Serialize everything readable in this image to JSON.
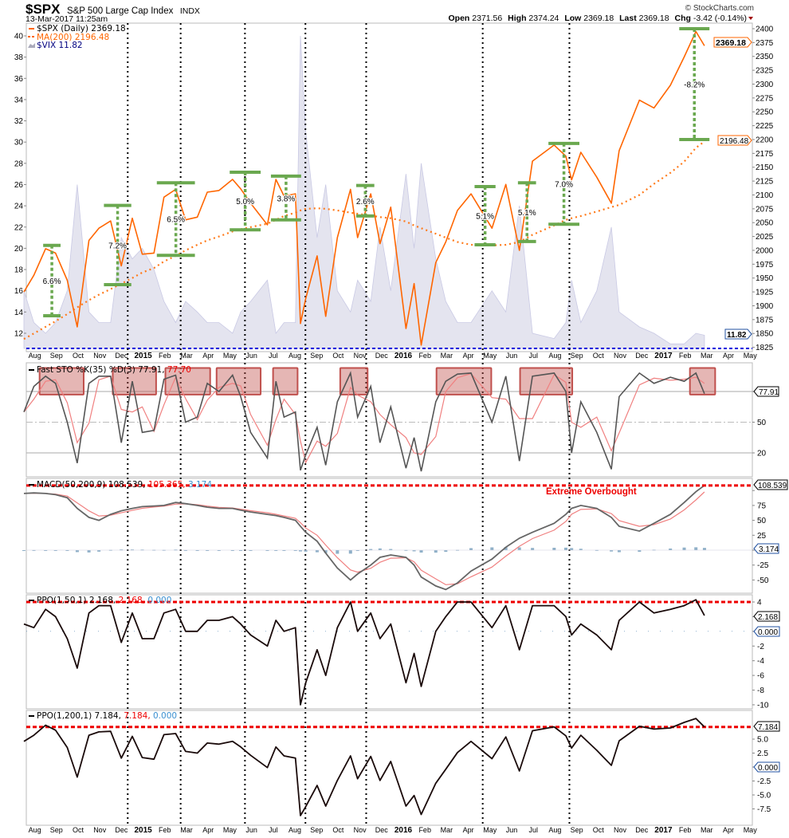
{
  "header": {
    "symbol": "$SPX",
    "name": "S&P 500 Large Cap Index",
    "exchange": "INDX",
    "datetime": "13-Mar-2017 11:25am",
    "watermark": "© StockCharts.com",
    "open_label": "Open",
    "open": "2371.56",
    "high_label": "High",
    "high": "2374.24",
    "low_label": "Low",
    "low": "2369.18",
    "last_label": "Last",
    "last": "2369.18",
    "chg_label": "Chg",
    "chg": "-3.42 (-0.14%)"
  },
  "legends": {
    "spx": "$SPX (Daily) 2369.18",
    "ma": "MA(200) 2196.48",
    "vix": "$VIX 11.82",
    "sto": "Fast STO %K(35) %D(3) 77.91,",
    "sto_d": " 77.70",
    "macd": "MACD(50,200,9) 108.539,",
    "macd_sig": " 105.365,",
    "macd_hist": " 3.174",
    "ppo50": "PPO(1,50,1) 2.168,",
    "ppo50_sig": " 2.168,",
    "ppo50_hist": " 0.000",
    "ppo200": "PPO(1,200,1) 7.184,",
    "ppo200_sig": " 7.184,",
    "ppo200_hist": " 0.000",
    "extreme": "Extreme Overbought"
  },
  "tags": {
    "spx": "2369.18",
    "ma": "2196.48",
    "vix": "11.82",
    "sto": "77.91",
    "macd": "108.539",
    "macd_hist": "3.174",
    "ppo50": "2.168",
    "ppo50_zero": "0.000",
    "ppo200": "7.184",
    "ppo200_zero": "0.000"
  },
  "colors": {
    "spx": "#ff6600",
    "ma": "#ff7a1a",
    "vix_fill": "#e4e4ef",
    "vix_line": "#c9c9e4",
    "bracket": "#6aa84f",
    "overbought": "#ee0000",
    "sto_box": "#c0504d",
    "osc": "#222222",
    "signal": "#f08080",
    "hist": "#8fb0c8",
    "vline": "#000000"
  },
  "chart_data": {
    "type": "line",
    "months": [
      "Aug",
      "Sep",
      "Oct",
      "Nov",
      "Dec",
      "2015",
      "Feb",
      "Mar",
      "Apr",
      "May",
      "Jun",
      "Jul",
      "Aug",
      "Sep",
      "Oct",
      "Nov",
      "Dec",
      "2016",
      "Feb",
      "Mar",
      "Apr",
      "May",
      "Jun",
      "Jul",
      "Aug",
      "Sep",
      "Oct",
      "Nov",
      "Dec",
      "2017",
      "Feb",
      "Mar",
      "Apr",
      "May"
    ],
    "dates": [
      "2014-08-01",
      "2014-08-15",
      "2014-09-01",
      "2014-09-15",
      "2014-10-01",
      "2014-10-15",
      "2014-11-01",
      "2014-11-15",
      "2014-12-01",
      "2014-12-16",
      "2015-01-01",
      "2015-01-15",
      "2015-02-01",
      "2015-02-15",
      "2015-03-01",
      "2015-03-15",
      "2015-04-01",
      "2015-04-15",
      "2015-05-01",
      "2015-05-20",
      "2015-06-01",
      "2015-06-15",
      "2015-07-08",
      "2015-07-20",
      "2015-08-01",
      "2015-08-17",
      "2015-08-24",
      "2015-09-01",
      "2015-09-17",
      "2015-09-29",
      "2015-10-15",
      "2015-11-03",
      "2015-11-13",
      "2015-12-01",
      "2015-12-14",
      "2015-12-29",
      "2016-01-20",
      "2016-02-01",
      "2016-02-11",
      "2016-03-01",
      "2016-03-15",
      "2016-04-01",
      "2016-04-20",
      "2016-05-19",
      "2016-06-08",
      "2016-06-27",
      "2016-07-15",
      "2016-08-15",
      "2016-09-01",
      "2016-09-09",
      "2016-09-22",
      "2016-10-14",
      "2016-11-04",
      "2016-11-15",
      "2016-12-13",
      "2017-01-03",
      "2017-01-26",
      "2017-02-15",
      "2017-03-01",
      "2017-03-13"
    ],
    "spx": [
      1925,
      1955,
      2003,
      1995,
      1946,
      1862,
      2018,
      2040,
      2053,
      1972,
      2058,
      1993,
      1995,
      2096,
      2110,
      2055,
      2060,
      2105,
      2108,
      2128,
      2111,
      2085,
      2046,
      2128,
      2098,
      2102,
      1868,
      1913,
      1990,
      1881,
      2023,
      2110,
      2023,
      2102,
      2012,
      2078,
      1859,
      1940,
      1829,
      1978,
      2015,
      2072,
      2102,
      2040,
      2119,
      2000,
      2161,
      2190,
      2170,
      2127,
      2177,
      2132,
      2085,
      2180,
      2271,
      2257,
      2298,
      2349,
      2395,
      2369.18
    ],
    "ma200": [
      1840,
      1850,
      1862,
      1872,
      1885,
      1897,
      1910,
      1920,
      1930,
      1940,
      1950,
      1960,
      1968,
      1980,
      1990,
      2000,
      2010,
      2018,
      2025,
      2034,
      2038,
      2042,
      2048,
      2055,
      2062,
      2068,
      2072,
      2075,
      2076,
      2075,
      2072,
      2068,
      2066,
      2063,
      2060,
      2058,
      2052,
      2045,
      2040,
      2030,
      2023,
      2015,
      2010,
      2009,
      2010,
      2015,
      2028,
      2045,
      2055,
      2058,
      2062,
      2070,
      2078,
      2082,
      2100,
      2120,
      2140,
      2160,
      2185,
      2196.48
    ],
    "vix": [
      16,
      13,
      12,
      13,
      16,
      26,
      14,
      13,
      13,
      21,
      19,
      20,
      18,
      15,
      13,
      15,
      14,
      13,
      13,
      12,
      14,
      15,
      17,
      12,
      13,
      13,
      40,
      31,
      21,
      26,
      16,
      14,
      17,
      15,
      22,
      16,
      27,
      20,
      28,
      19,
      15,
      13,
      13,
      16,
      14,
      24,
      12,
      11.5,
      13,
      17,
      13,
      16,
      22,
      14,
      12.6,
      12,
      11,
      11,
      12,
      11.82
    ],
    "sto_k": [
      60,
      85,
      95,
      88,
      50,
      10,
      88,
      95,
      95,
      30,
      90,
      40,
      42,
      92,
      96,
      50,
      55,
      88,
      80,
      96,
      75,
      40,
      15,
      90,
      55,
      60,
      3,
      18,
      45,
      8,
      70,
      98,
      55,
      85,
      30,
      65,
      5,
      35,
      2,
      70,
      90,
      97,
      98,
      50,
      95,
      12,
      95,
      98,
      80,
      20,
      70,
      40,
      4,
      75,
      98,
      88,
      94,
      90,
      98,
      77.91
    ],
    "macd": [
      95,
      96,
      95,
      93,
      88,
      70,
      55,
      50,
      60,
      66,
      70,
      73,
      74,
      75,
      80,
      78,
      75,
      72,
      70,
      70,
      67,
      64,
      60,
      58,
      55,
      50,
      40,
      30,
      15,
      -5,
      -30,
      -50,
      -40,
      -25,
      -12,
      -8,
      -12,
      -25,
      -45,
      -60,
      -66,
      -55,
      -35,
      -15,
      5,
      20,
      30,
      45,
      60,
      70,
      75,
      70,
      55,
      40,
      32,
      45,
      60,
      80,
      98,
      108.539
    ],
    "ppo50": [
      1,
      0.5,
      3,
      2,
      -1,
      -5,
      2.5,
      3.5,
      3.5,
      -1.5,
      2.5,
      -1,
      -1,
      2.5,
      3,
      0,
      0,
      1.5,
      1.5,
      2,
      1,
      -0.5,
      -2,
      1.5,
      0,
      0.5,
      -10,
      -7,
      -2.5,
      -6,
      0.5,
      4,
      0,
      2.5,
      -1,
      1,
      -7,
      -3,
      -7.5,
      0,
      2,
      4,
      4,
      0.5,
      3.5,
      -2.5,
      3.5,
      3.5,
      2,
      -0.5,
      1,
      -0.5,
      -2.5,
      1.5,
      4,
      2.5,
      3,
      3.5,
      4.3,
      2.168
    ],
    "ppo200": [
      4.6,
      5.7,
      7.5,
      6.6,
      3.5,
      -1.8,
      5.7,
      6.3,
      6.4,
      1.6,
      5.5,
      1.7,
      1.4,
      5.8,
      6,
      2.8,
      2.5,
      4.3,
      4.1,
      4.6,
      3.6,
      2.1,
      -0.1,
      3.6,
      2,
      1.6,
      -8.7,
      -7.1,
      -3.3,
      -7,
      -2.4,
      2,
      -2.1,
      1.9,
      -2.4,
      1,
      -7,
      -5.1,
      -8.5,
      -2.9,
      -0.4,
      2.6,
      4.6,
      1.5,
      5.4,
      -0.7,
      6.5,
      7.2,
      5.6,
      3.4,
      5.7,
      3,
      0.3,
      4.7,
      7.3,
      6.8,
      7,
      8,
      8.7,
      7.184
    ],
    "spx_axis": {
      "ticks": [
        1825,
        1850,
        1875,
        1900,
        1925,
        1950,
        1975,
        2000,
        2025,
        2050,
        2075,
        2100,
        2125,
        2150,
        2175,
        2200,
        2225,
        2250,
        2275,
        2300,
        2325,
        2350,
        2375,
        2400
      ]
    },
    "vix_axis": {
      "ticks": [
        12,
        14,
        16,
        18,
        20,
        22,
        24,
        26,
        28,
        30,
        32,
        34,
        36,
        38,
        40
      ]
    },
    "sto_axis": {
      "ticks": [
        20,
        50,
        80
      ],
      "labels": [
        "20",
        "50"
      ]
    },
    "macd_axis": {
      "ticks": [
        -50,
        -25,
        0,
        25,
        50,
        75,
        100
      ],
      "labels": [
        "-50",
        "-25",
        "25",
        "50",
        "75"
      ]
    },
    "ppo50_axis": {
      "ticks": [
        -10,
        -8,
        -6,
        -4,
        -2,
        0,
        2,
        4
      ],
      "labels": [
        "-10",
        "-8",
        "-6",
        "-4",
        "-2",
        "4"
      ]
    },
    "ppo200_axis": {
      "ticks": [
        -7.5,
        -5,
        -2.5,
        0,
        2.5,
        5
      ],
      "labels": [
        "-7.5",
        "-5.0",
        "-2.5",
        "2.5",
        "5.0"
      ]
    },
    "overbought_levels": {
      "macd": 108.539,
      "ppo50": 4,
      "ppo200": 7.184
    },
    "vertical_markers": [
      "2014-12-25",
      "2015-03-08",
      "2015-06-07",
      "2015-08-31",
      "2015-11-25",
      "2016-05-06",
      "2016-09-06"
    ],
    "corrections": [
      {
        "label": "6.6%",
        "from": "2014-08-28",
        "to": "2014-09-22",
        "top": 2009,
        "bottom": 1882
      },
      {
        "label": "7.2%",
        "from": "2014-11-22",
        "to": "2014-12-30",
        "top": 2081,
        "bottom": 1938
      },
      {
        "label": "6.5%",
        "from": "2015-02-05",
        "to": "2015-03-28",
        "top": 2122,
        "bottom": 1991
      },
      {
        "label": "5.0%",
        "from": "2015-05-16",
        "to": "2015-06-29",
        "top": 2141,
        "bottom": 2037
      },
      {
        "label": "3.8%",
        "from": "2015-07-13",
        "to": "2015-08-25",
        "top": 2134,
        "bottom": 2055
      },
      {
        "label": "2.6%",
        "from": "2015-11-11",
        "to": "2015-12-06",
        "top": 2117,
        "bottom": 2062
      },
      {
        "label": "5.1%",
        "from": "2016-04-25",
        "to": "2016-05-24",
        "top": 2115,
        "bottom": 2010
      },
      {
        "label": "5.1%",
        "from": "2016-06-25",
        "to": "2016-07-20",
        "top": 2122,
        "bottom": 2016
      },
      {
        "label": "7.0%",
        "from": "2016-08-07",
        "to": "2016-09-20",
        "top": 2193,
        "bottom": 2047
      },
      {
        "label": "-8.2%",
        "from": "2017-02-08",
        "to": "2017-03-20",
        "top": 2400,
        "bottom": 2200
      }
    ],
    "sto_overbought_boxes": [
      [
        "2014-08-23",
        "2014-10-24"
      ],
      [
        "2014-12-04",
        "2015-02-04"
      ],
      [
        "2015-02-17",
        "2015-04-19"
      ],
      [
        "2015-04-28",
        "2015-06-29"
      ],
      [
        "2015-07-16",
        "2015-08-20"
      ],
      [
        "2015-10-19",
        "2015-11-27"
      ],
      [
        "2016-03-02",
        "2016-05-18"
      ],
      [
        "2016-06-28",
        "2016-09-10"
      ],
      [
        "2017-02-23",
        "2017-03-28"
      ]
    ]
  }
}
